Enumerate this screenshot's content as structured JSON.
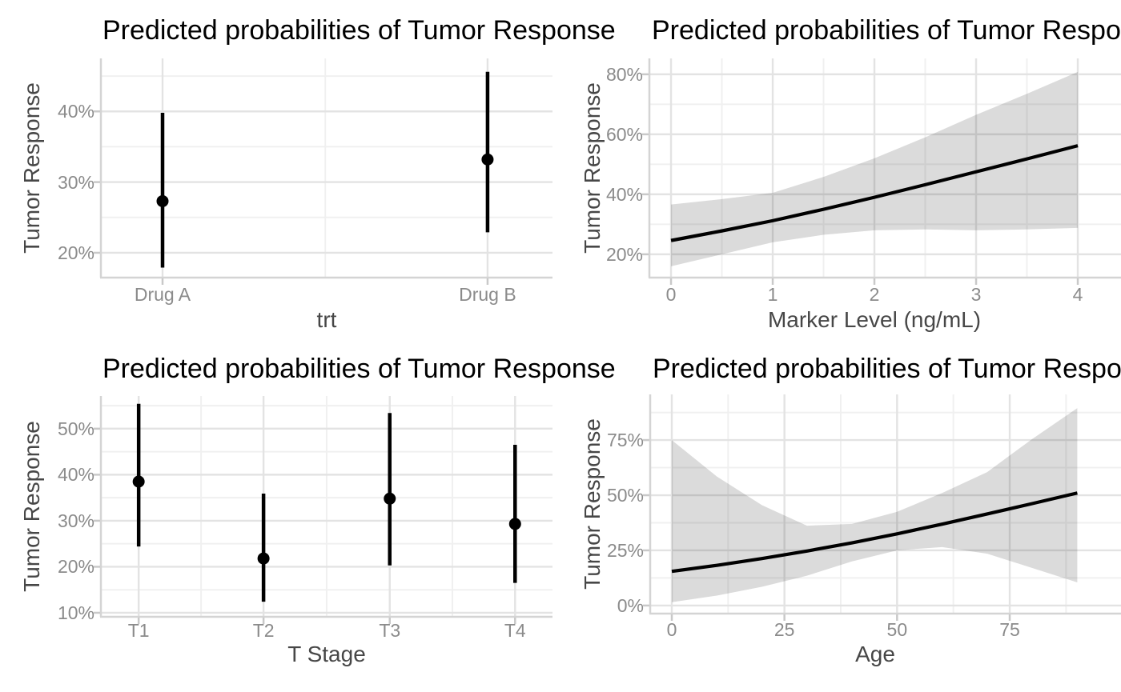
{
  "style": {
    "background": "#ffffff",
    "title_color": "#000000",
    "axis_title_color": "#474747",
    "tick_label_color": "#8b8b8b",
    "grid_major": "#e3e3e3",
    "grid_minor": "#f0f0f0",
    "axis_line": "#d4d4d4",
    "tick_mark": "#c9c9c9",
    "series_color": "#000000",
    "ribbon_color": "rgba(0,0,0,0.14)"
  },
  "chart_data": [
    {
      "type": "pointrange",
      "title": "Predicted probabilities of Tumor Response",
      "xlabel": "trt",
      "ylabel": "Tumor Response",
      "categories": [
        "Drug A",
        "Drug B"
      ],
      "estimates": [
        27.3,
        33.2
      ],
      "ci_low": [
        17.9,
        22.9
      ],
      "ci_high": [
        39.8,
        45.6
      ],
      "y_ticks": [
        20,
        30,
        40
      ],
      "y_tick_labels": [
        "20%",
        "30%",
        "40%"
      ],
      "y_minor": [
        25,
        35,
        45
      ],
      "ylim": [
        16.6,
        47.5
      ],
      "grid": true,
      "legend": "none"
    },
    {
      "type": "line-ribbon",
      "title": "Predicted probabilities of Tumor Response",
      "xlabel": "Marker Level (ng/mL)",
      "ylabel": "Tumor Response",
      "x": [
        0,
        0.5,
        1,
        1.5,
        2,
        2.5,
        3,
        3.5,
        4
      ],
      "y": [
        24.6,
        27.8,
        31.2,
        35.0,
        39.0,
        43.2,
        47.5,
        51.8,
        56.2
      ],
      "ci_upper": [
        36.6,
        38.4,
        40.5,
        45.8,
        52.0,
        59.0,
        66.5,
        73.5,
        80.8
      ],
      "ci_lower": [
        16.0,
        20.0,
        24.0,
        26.5,
        28.0,
        28.3,
        28.0,
        28.3,
        28.8
      ],
      "x_ticks": [
        0,
        1,
        2,
        3,
        4
      ],
      "x_tick_labels": [
        "0",
        "1",
        "2",
        "3",
        "4"
      ],
      "x_minor": [
        0.5,
        1.5,
        2.5,
        3.5
      ],
      "xlim": [
        -0.205,
        4.425
      ],
      "y_ticks": [
        20,
        40,
        60,
        80
      ],
      "y_tick_labels": [
        "20%",
        "40%",
        "60%",
        "80%"
      ],
      "y_minor": [
        30,
        50,
        70
      ],
      "ylim": [
        12.5,
        85.3
      ],
      "grid": true,
      "legend": "none"
    },
    {
      "type": "pointrange",
      "title": "Predicted probabilities of Tumor Response",
      "xlabel": "T Stage",
      "ylabel": "Tumor Response",
      "categories": [
        "T1",
        "T2",
        "T3",
        "T4"
      ],
      "estimates": [
        38.5,
        21.8,
        34.8,
        29.3
      ],
      "ci_low": [
        24.4,
        12.4,
        20.3,
        16.5
      ],
      "ci_high": [
        55.4,
        35.9,
        53.4,
        46.5
      ],
      "y_ticks": [
        10,
        20,
        30,
        40,
        50
      ],
      "y_tick_labels": [
        "10%",
        "20%",
        "30%",
        "40%",
        "50%"
      ],
      "y_minor": [
        15,
        25,
        35,
        45,
        55
      ],
      "ylim": [
        9.3,
        57.1
      ],
      "grid": true,
      "legend": "none"
    },
    {
      "type": "line-ribbon",
      "title": "Predicted probabilities of Tumor Response",
      "xlabel": "Age",
      "ylabel": "Tumor Response",
      "x": [
        0,
        10,
        20,
        30,
        40,
        50,
        60,
        70,
        80,
        90
      ],
      "y": [
        15.5,
        18.2,
        21.3,
        24.7,
        28.4,
        32.5,
        36.9,
        41.5,
        46.2,
        51.0
      ],
      "ci_upper": [
        75.0,
        58.5,
        45.5,
        36.2,
        37.0,
        42.5,
        51.0,
        60.5,
        75.5,
        89.5
      ],
      "ci_lower": [
        1.5,
        4.5,
        8.5,
        13.5,
        20.0,
        25.0,
        26.5,
        23.5,
        17.0,
        10.5
      ],
      "x_ticks": [
        0,
        25,
        50,
        75
      ],
      "x_tick_labels": [
        "0",
        "25",
        "50",
        "75"
      ],
      "x_minor": [
        12.5,
        37.5,
        62.5,
        87.5
      ],
      "xlim": [
        -4.62,
        99.7
      ],
      "y_ticks": [
        0,
        25,
        50,
        75
      ],
      "y_tick_labels": [
        "0%",
        "25%",
        "50%",
        "75%"
      ],
      "y_minor": [
        12.5,
        37.5,
        62.5,
        87.5
      ],
      "ylim": [
        -3.3,
        95.7
      ],
      "grid": true,
      "legend": "none"
    }
  ]
}
